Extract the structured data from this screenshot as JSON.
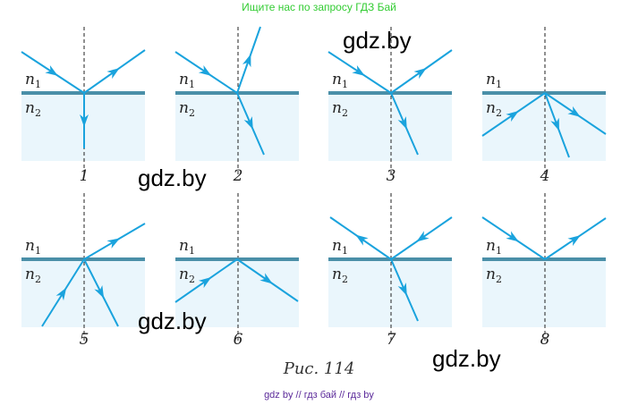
{
  "header_text": "Ищите нас по запросу ГДЗ Бай",
  "medium_labels": {
    "n": "n",
    "upper_sub": "1",
    "lower_sub": "2"
  },
  "panel_numbers": [
    "1",
    "2",
    "3",
    "4",
    "5",
    "6",
    "7",
    "8"
  ],
  "caption": "Рис. 114",
  "watermarks": [
    "gdz.by",
    "gdz.by",
    "gdz.by",
    "gdz.by"
  ],
  "footer_text": "gdz by  //  гдз бай  //  гдз by",
  "colors": {
    "ray": "#1aa3dd",
    "interface": "#4a8fa8",
    "medium": "#eaf6fc"
  }
}
